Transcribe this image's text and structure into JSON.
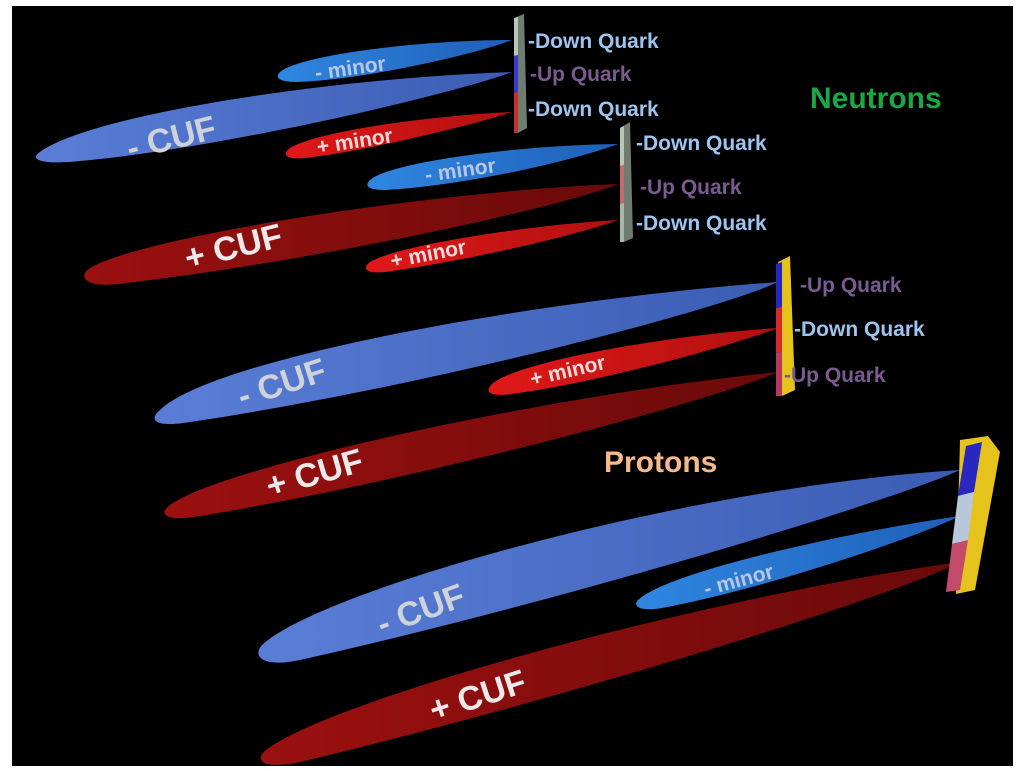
{
  "group_labels": {
    "neutrons": {
      "text": "Neutrons",
      "color": "#1aa845"
    },
    "protons": {
      "text": "Protons",
      "color": "#f6b98a"
    }
  },
  "quark_labels": {
    "down": {
      "text": "-Down Quark",
      "color": "#9cc4ee"
    },
    "up": {
      "text": "-Up Quark",
      "color": "#7b5a92"
    }
  },
  "lobe_labels": {
    "neg_cuf": "- CUF",
    "pos_cuf": "+ CUF",
    "neg_minor": "- minor",
    "pos_minor": "+ minor"
  },
  "colors": {
    "background": "#000000",
    "blue_lobe": "#4a6ec8",
    "light_blue_lobe": "#2e7fd8",
    "red_lobe": "#d41818",
    "dark_red_lobe": "#8e0f0f",
    "cuf_text": "#cfd2d8",
    "minor_text_blue": "#b8c7e4",
    "minor_text_red": "#f1dada",
    "pos_cuf_text": "#ebe9e9",
    "bar_gray": "#a8b6a8",
    "bar_yellow": "#e5c21c"
  }
}
